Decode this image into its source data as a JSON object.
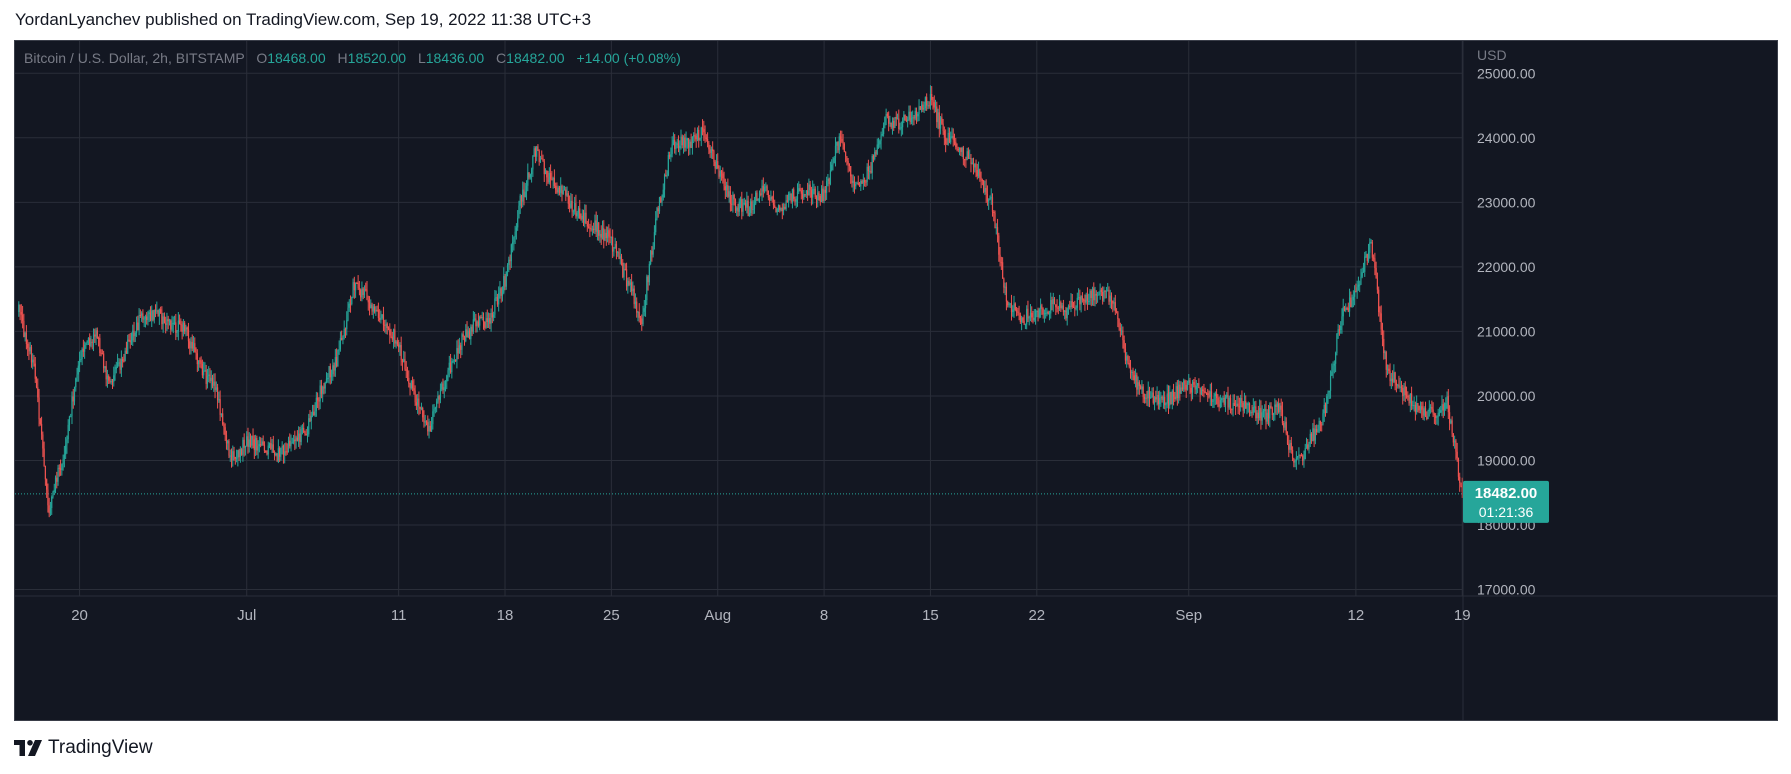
{
  "header": {
    "published_line": "YordanLyanchev published on TradingView.com, Sep 19, 2022 11:38 UTC+3"
  },
  "footer": {
    "brand_label": "TradingView",
    "logo_icon": "tradingview-logo-icon"
  },
  "legend": {
    "symbol": "Bitcoin / U.S. Dollar, 2h, BITSTAMP",
    "o_label": "O",
    "o_value": "18468.00",
    "h_label": "H",
    "h_value": "18520.00",
    "l_label": "L",
    "l_value": "18436.00",
    "c_label": "C",
    "c_value": "18482.00",
    "change": "+14.00 (+0.08%)"
  },
  "price_tag": {
    "price": "18482.00",
    "countdown": "01:21:36"
  },
  "colors": {
    "background": "#131722",
    "grid": "#2a2e39",
    "up": "#26a69a",
    "down": "#ef5350",
    "axis_text": "#b2b5be",
    "legend_symbol": "#787b86"
  },
  "chart_data": {
    "type": "candlestick",
    "title": "Bitcoin / U.S. Dollar, 2h, BITSTAMP",
    "currency_label": "USD",
    "ylim": [
      16900,
      25500
    ],
    "y_ticks": [
      17000,
      18000,
      19000,
      20000,
      21000,
      22000,
      23000,
      24000,
      25000
    ],
    "y_tick_labels": [
      "17000.00",
      "18000.00",
      "19000.00",
      "20000.00",
      "21000.00",
      "22000.00",
      "23000.00",
      "24000.00",
      "25000.00"
    ],
    "x_range_days": [
      "2022-06-16",
      "2022-09-19"
    ],
    "x_ticks": [
      {
        "label": "20",
        "date": "2022-06-20"
      },
      {
        "label": "Jul",
        "date": "2022-07-01"
      },
      {
        "label": "11",
        "date": "2022-07-11"
      },
      {
        "label": "18",
        "date": "2022-07-18"
      },
      {
        "label": "25",
        "date": "2022-07-25"
      },
      {
        "label": "Aug",
        "date": "2022-08-01"
      },
      {
        "label": "8",
        "date": "2022-08-08"
      },
      {
        "label": "15",
        "date": "2022-08-15"
      },
      {
        "label": "22",
        "date": "2022-08-22"
      },
      {
        "label": "Sep",
        "date": "2022-09-01"
      },
      {
        "label": "12",
        "date": "2022-09-12"
      },
      {
        "label": "19",
        "date": "2022-09-19"
      }
    ],
    "last_price": 18482,
    "close_path_approx": [
      {
        "date": "2022-06-16",
        "close": 21300
      },
      {
        "date": "2022-06-17",
        "close": 20500
      },
      {
        "date": "2022-06-18",
        "close": 18200
      },
      {
        "date": "2022-06-19",
        "close": 19200
      },
      {
        "date": "2022-06-20",
        "close": 20600
      },
      {
        "date": "2022-06-21",
        "close": 21000
      },
      {
        "date": "2022-06-22",
        "close": 20100
      },
      {
        "date": "2022-06-23",
        "close": 20700
      },
      {
        "date": "2022-06-24",
        "close": 21200
      },
      {
        "date": "2022-06-25",
        "close": 21300
      },
      {
        "date": "2022-06-26",
        "close": 21100
      },
      {
        "date": "2022-06-27",
        "close": 21000
      },
      {
        "date": "2022-06-28",
        "close": 20400
      },
      {
        "date": "2022-06-29",
        "close": 20100
      },
      {
        "date": "2022-06-30",
        "close": 19000
      },
      {
        "date": "2022-07-01",
        "close": 19300
      },
      {
        "date": "2022-07-02",
        "close": 19200
      },
      {
        "date": "2022-07-03",
        "close": 19100
      },
      {
        "date": "2022-07-04",
        "close": 19300
      },
      {
        "date": "2022-07-05",
        "close": 19500
      },
      {
        "date": "2022-07-06",
        "close": 20200
      },
      {
        "date": "2022-07-07",
        "close": 20600
      },
      {
        "date": "2022-07-08",
        "close": 21700
      },
      {
        "date": "2022-07-09",
        "close": 21500
      },
      {
        "date": "2022-07-10",
        "close": 21200
      },
      {
        "date": "2022-07-11",
        "close": 20800
      },
      {
        "date": "2022-07-12",
        "close": 20000
      },
      {
        "date": "2022-07-13",
        "close": 19500
      },
      {
        "date": "2022-07-14",
        "close": 20200
      },
      {
        "date": "2022-07-15",
        "close": 20800
      },
      {
        "date": "2022-07-16",
        "close": 21100
      },
      {
        "date": "2022-07-17",
        "close": 21200
      },
      {
        "date": "2022-07-18",
        "close": 21800
      },
      {
        "date": "2022-07-19",
        "close": 23000
      },
      {
        "date": "2022-07-20",
        "close": 23800
      },
      {
        "date": "2022-07-21",
        "close": 23300
      },
      {
        "date": "2022-07-22",
        "close": 23100
      },
      {
        "date": "2022-07-23",
        "close": 22800
      },
      {
        "date": "2022-07-24",
        "close": 22600
      },
      {
        "date": "2022-07-25",
        "close": 22400
      },
      {
        "date": "2022-07-26",
        "close": 21800
      },
      {
        "date": "2022-07-27",
        "close": 21200
      },
      {
        "date": "2022-07-28",
        "close": 22800
      },
      {
        "date": "2022-07-29",
        "close": 23900
      },
      {
        "date": "2022-07-30",
        "close": 23900
      },
      {
        "date": "2022-07-31",
        "close": 24100
      },
      {
        "date": "2022-08-01",
        "close": 23500
      },
      {
        "date": "2022-08-02",
        "close": 23000
      },
      {
        "date": "2022-08-03",
        "close": 22900
      },
      {
        "date": "2022-08-04",
        "close": 23200
      },
      {
        "date": "2022-08-05",
        "close": 22900
      },
      {
        "date": "2022-08-06",
        "close": 23100
      },
      {
        "date": "2022-08-07",
        "close": 23200
      },
      {
        "date": "2022-08-08",
        "close": 23100
      },
      {
        "date": "2022-08-09",
        "close": 24000
      },
      {
        "date": "2022-08-10",
        "close": 23200
      },
      {
        "date": "2022-08-11",
        "close": 23500
      },
      {
        "date": "2022-08-12",
        "close": 24300
      },
      {
        "date": "2022-08-13",
        "close": 24200
      },
      {
        "date": "2022-08-14",
        "close": 24400
      },
      {
        "date": "2022-08-15",
        "close": 24600
      },
      {
        "date": "2022-08-16",
        "close": 24000
      },
      {
        "date": "2022-08-17",
        "close": 23800
      },
      {
        "date": "2022-08-18",
        "close": 23500
      },
      {
        "date": "2022-08-19",
        "close": 23000
      },
      {
        "date": "2022-08-20",
        "close": 21500
      },
      {
        "date": "2022-08-21",
        "close": 21200
      },
      {
        "date": "2022-08-22",
        "close": 21300
      },
      {
        "date": "2022-08-23",
        "close": 21400
      },
      {
        "date": "2022-08-24",
        "close": 21300
      },
      {
        "date": "2022-08-25",
        "close": 21500
      },
      {
        "date": "2022-08-26",
        "close": 21600
      },
      {
        "date": "2022-08-27",
        "close": 21500
      },
      {
        "date": "2022-08-28",
        "close": 20500
      },
      {
        "date": "2022-08-29",
        "close": 20000
      },
      {
        "date": "2022-08-30",
        "close": 19900
      },
      {
        "date": "2022-08-31",
        "close": 20000
      },
      {
        "date": "2022-09-01",
        "close": 20200
      },
      {
        "date": "2022-09-02",
        "close": 20000
      },
      {
        "date": "2022-09-03",
        "close": 19900
      },
      {
        "date": "2022-09-04",
        "close": 19900
      },
      {
        "date": "2022-09-05",
        "close": 19800
      },
      {
        "date": "2022-09-06",
        "close": 19700
      },
      {
        "date": "2022-09-07",
        "close": 19800
      },
      {
        "date": "2022-09-08",
        "close": 18900
      },
      {
        "date": "2022-09-09",
        "close": 19300
      },
      {
        "date": "2022-09-10",
        "close": 19800
      },
      {
        "date": "2022-09-11",
        "close": 21200
      },
      {
        "date": "2022-09-12",
        "close": 21600
      },
      {
        "date": "2022-09-13",
        "close": 22400
      },
      {
        "date": "2022-09-14",
        "close": 20400
      },
      {
        "date": "2022-09-15",
        "close": 20100
      },
      {
        "date": "2022-09-16",
        "close": 19800
      },
      {
        "date": "2022-09-17",
        "close": 19700
      },
      {
        "date": "2022-09-18",
        "close": 19900
      },
      {
        "date": "2022-09-19",
        "close": 18482
      }
    ]
  }
}
